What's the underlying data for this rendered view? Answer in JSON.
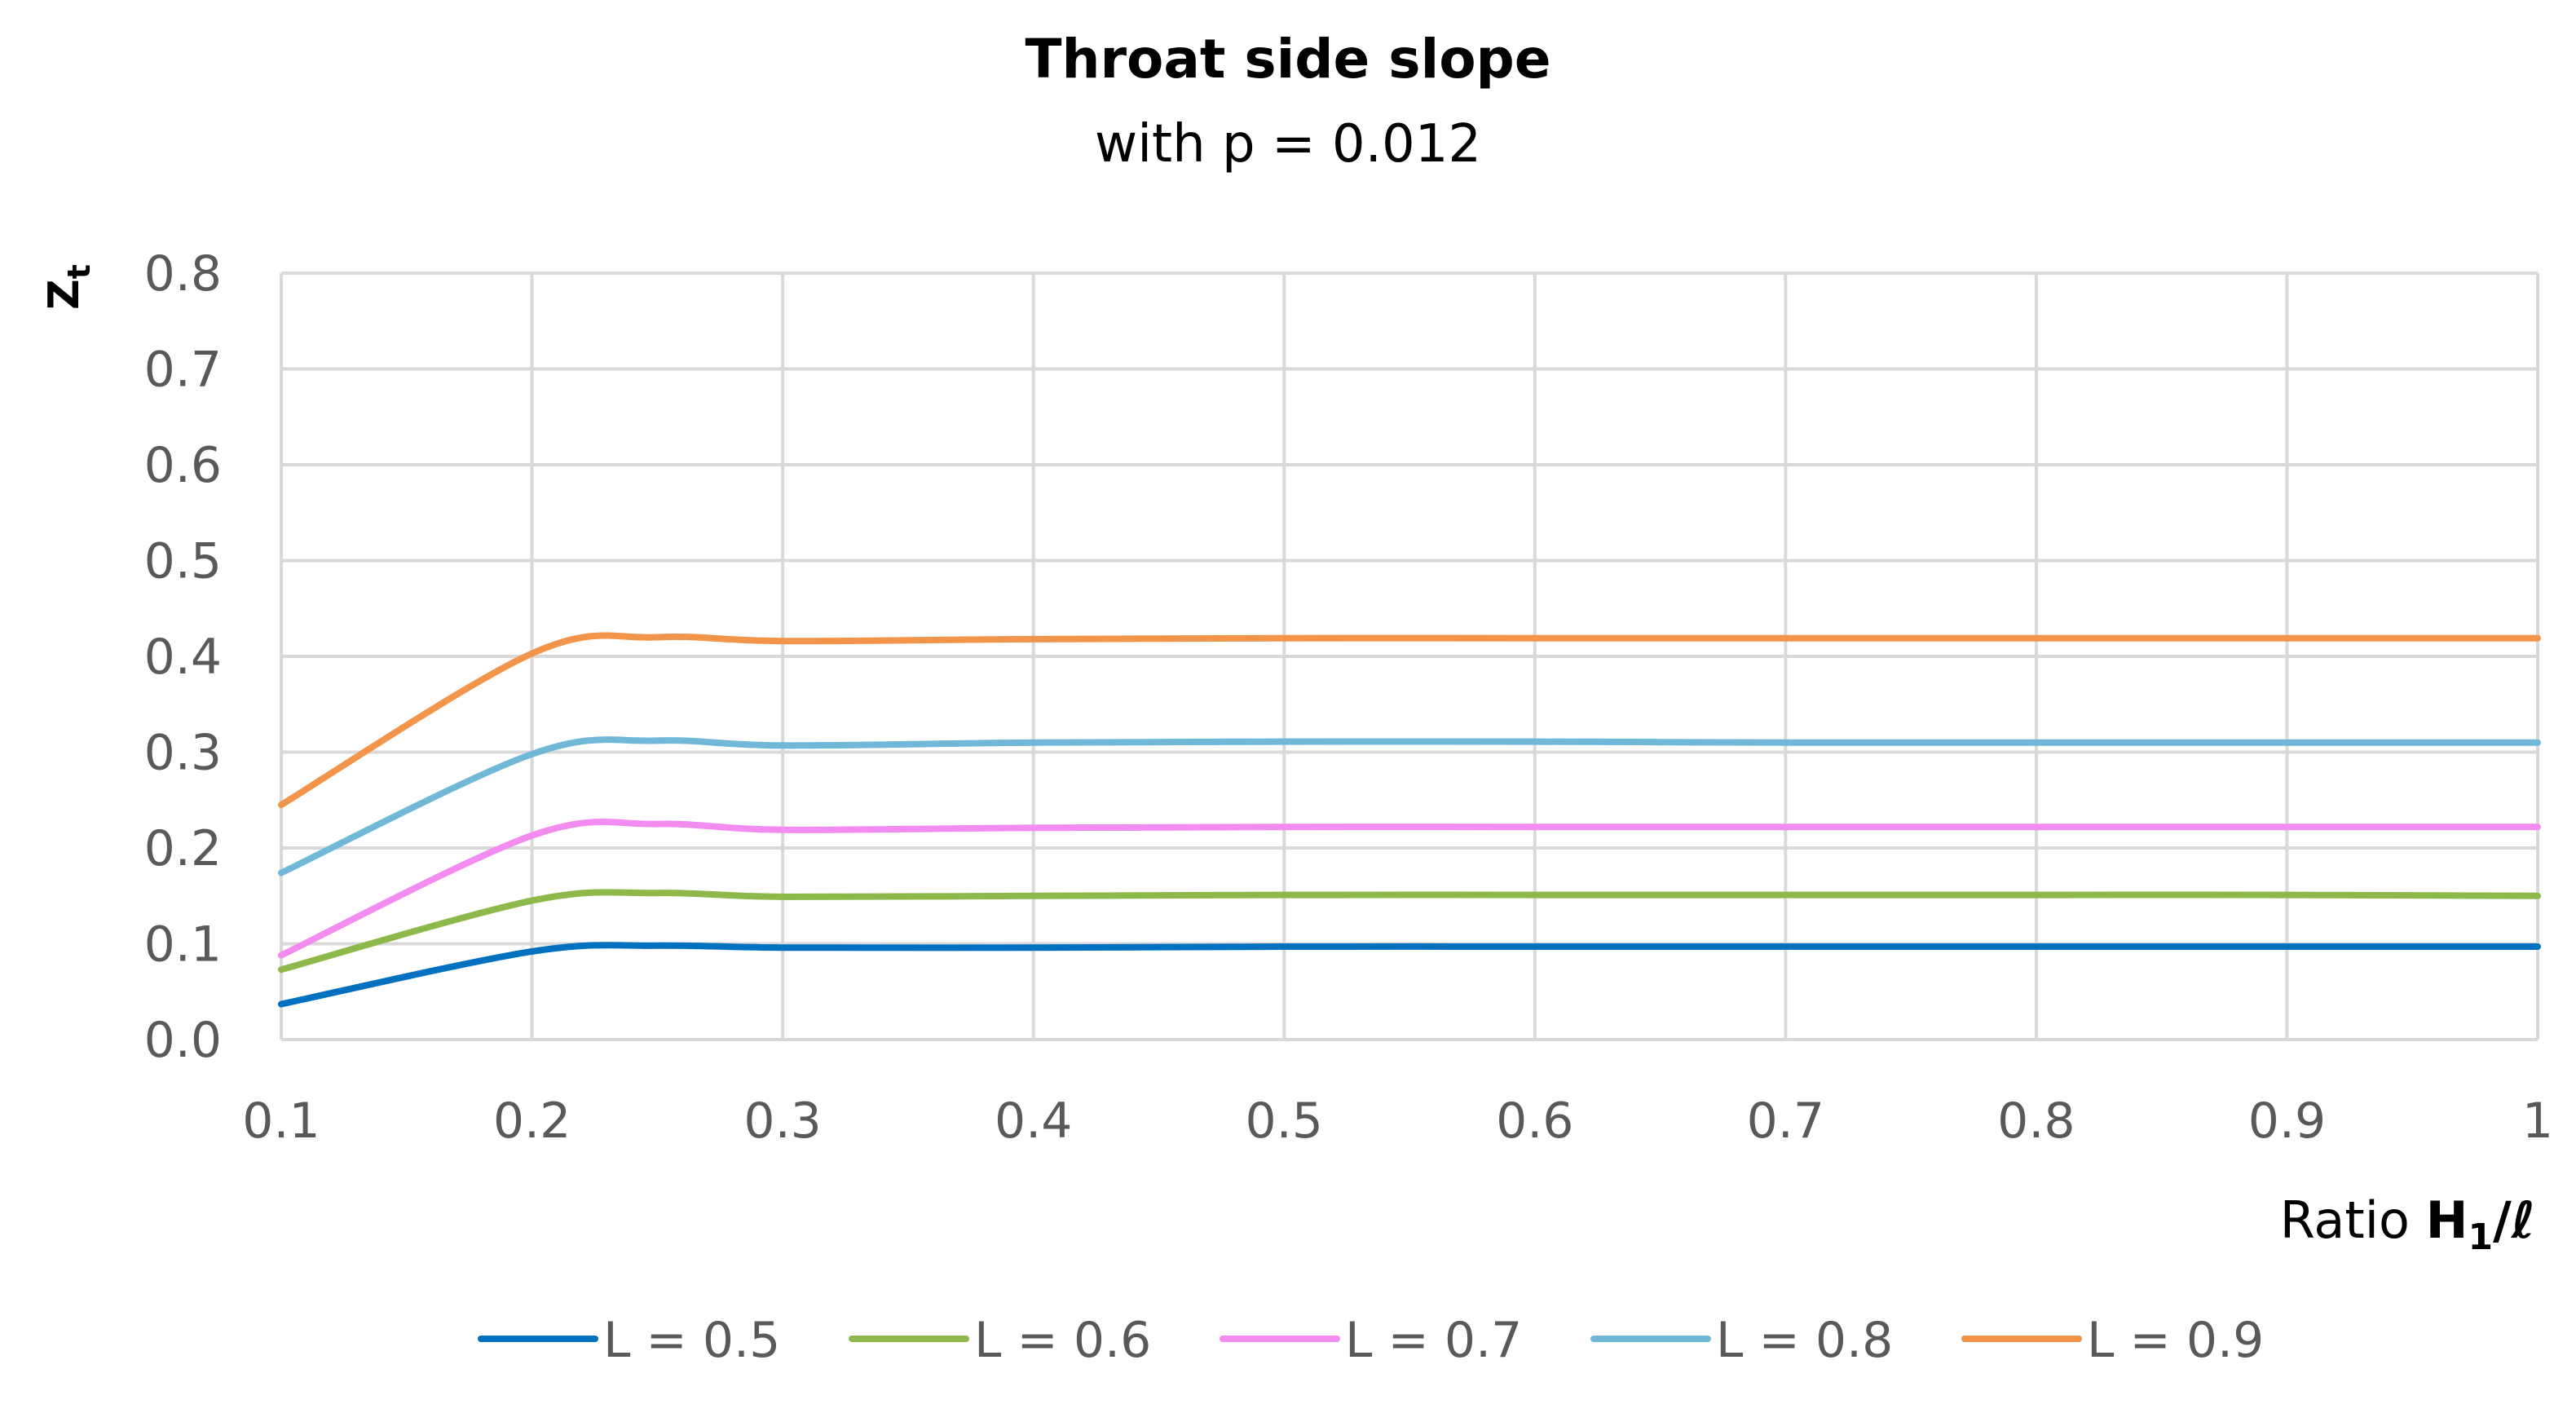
{
  "chart_data": {
    "type": "line",
    "title": "Throat side slope",
    "subtitle": "with p = 0.012",
    "xlabel": "Ratio H1/ℓ",
    "xlabel_prefix": "Ratio ",
    "xlabel_main": "H",
    "xlabel_sub": "1",
    "xlabel_suffix": "/ℓ",
    "ylabel": "Zt",
    "ylabel_main": "Z",
    "ylabel_sub": "t",
    "xlim": [
      0.1,
      1
    ],
    "ylim": [
      0,
      0.8
    ],
    "x_ticks": [
      "0.1",
      "0.2",
      "0.3",
      "0.4",
      "0.5",
      "0.6",
      "0.7",
      "0.8",
      "0.9",
      "1"
    ],
    "y_ticks": [
      "0.0",
      "0.1",
      "0.2",
      "0.3",
      "0.4",
      "0.5",
      "0.6",
      "0.7",
      "0.8"
    ],
    "grid": true,
    "legend_position": "bottom",
    "x": [
      0.1,
      0.2,
      0.25,
      0.3,
      0.4,
      0.5,
      0.6,
      0.7,
      0.8,
      0.9,
      1.0
    ],
    "series": [
      {
        "name": "L = 0.5",
        "color": "#0070C0",
        "values": [
          0.037,
          0.092,
          0.098,
          0.096,
          0.096,
          0.097,
          0.097,
          0.097,
          0.097,
          0.097,
          0.097
        ]
      },
      {
        "name": "L = 0.6",
        "color": "#8DB84A",
        "values": [
          0.073,
          0.145,
          0.153,
          0.149,
          0.15,
          0.151,
          0.151,
          0.151,
          0.151,
          0.151,
          0.15
        ]
      },
      {
        "name": "L = 0.7",
        "color": "#F28CF0",
        "values": [
          0.088,
          0.213,
          0.225,
          0.219,
          0.221,
          0.222,
          0.222,
          0.222,
          0.222,
          0.222,
          0.222
        ]
      },
      {
        "name": "L = 0.8",
        "color": "#71B8D8",
        "values": [
          0.174,
          0.298,
          0.312,
          0.307,
          0.31,
          0.311,
          0.311,
          0.31,
          0.31,
          0.31,
          0.31
        ]
      },
      {
        "name": "L = 0.9",
        "color": "#F2944A",
        "values": [
          0.245,
          0.403,
          0.42,
          0.416,
          0.418,
          0.419,
          0.419,
          0.419,
          0.419,
          0.419,
          0.419
        ]
      }
    ]
  }
}
